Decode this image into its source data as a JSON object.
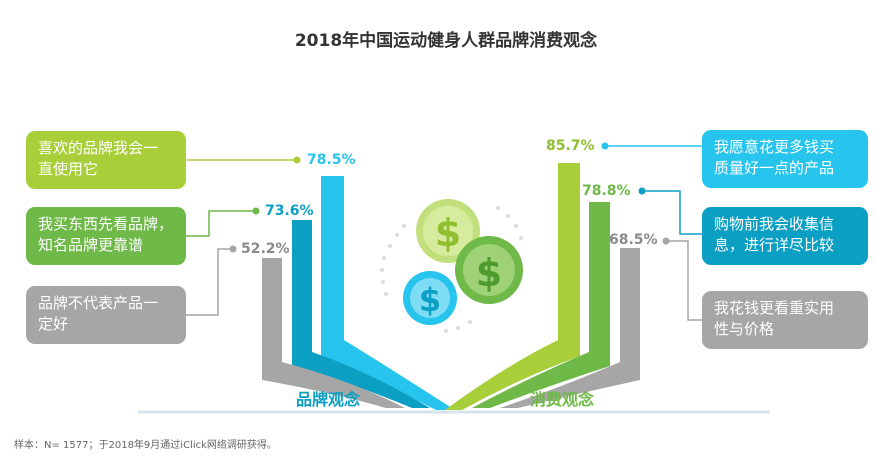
{
  "title": "2018年中国运动健身人群品牌消费观念",
  "footnote": "样本：N= 1577；于2018年9月通过iClick网络调研获得。",
  "colors": {
    "lime": "#a8cf39",
    "green": "#6eb947",
    "cyan": "#27c4ee",
    "teal": "#0b9fc4",
    "gray": "#a6a6a6"
  },
  "chart_data": {
    "type": "bar",
    "groups": [
      {
        "name": "品牌观念",
        "items": [
          {
            "label": "喜欢的品牌我会一直使用它",
            "value": 78.5,
            "value_label": "78.5%"
          },
          {
            "label": "我买东西先看品牌，知名品牌更靠谱",
            "value": 73.6,
            "value_label": "73.6%"
          },
          {
            "label": "品牌不代表产品一定好",
            "value": 52.2,
            "value_label": "52.2%"
          }
        ]
      },
      {
        "name": "消费观念",
        "items": [
          {
            "label": "我愿意花更多钱买质量好一点的产品",
            "value": 85.7,
            "value_label": "85.7%"
          },
          {
            "label": "购物前我会收集信息，进行详尽比较",
            "value": 78.8,
            "value_label": "78.8%"
          },
          {
            "label": "我花钱更看重实用性与价格",
            "value": 68.5,
            "value_label": "68.5%"
          }
        ]
      }
    ]
  },
  "boxes": {
    "left": [
      "喜欢的品牌我会一\n直使用它",
      "我买东西先看品牌，\n知名品牌更靠谱",
      "品牌不代表产品一\n定好"
    ],
    "right": [
      "我愿意花更多钱买\n质量好一点的产品",
      "购物前我会收集信\n息，进行详尽比较",
      "我花钱更看重实用\n性与价格"
    ]
  },
  "icons": [
    "dollar-coin-icon"
  ]
}
